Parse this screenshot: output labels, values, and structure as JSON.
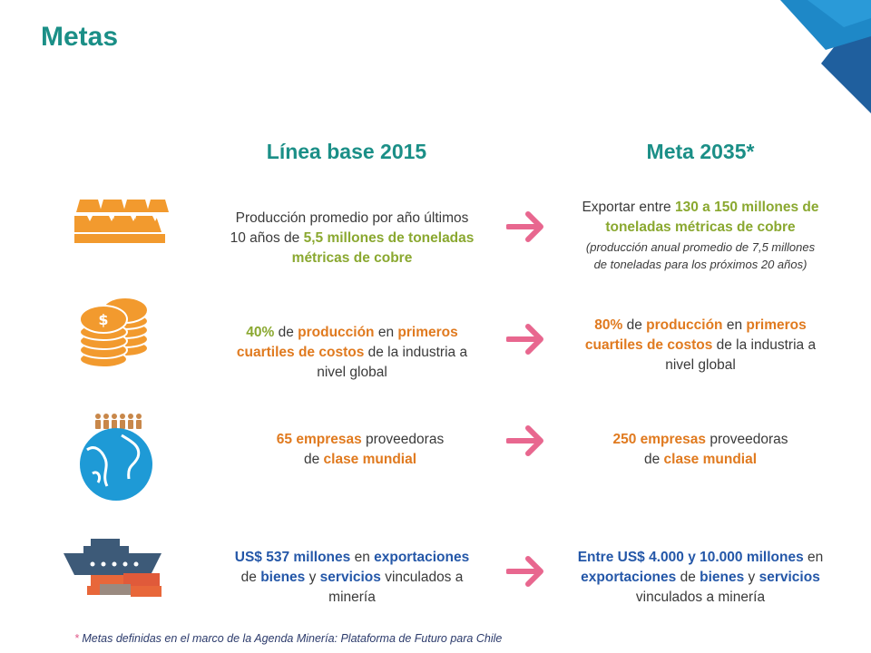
{
  "title": "Metas",
  "columns": {
    "baseline": "Línea base 2015",
    "goal": "Meta 2035*"
  },
  "rows": [
    {
      "icon": "gold-bars-icon",
      "baseline": {
        "t1": "Producción promedio por año últimos",
        "t2": "10 años de ",
        "t3": "5,5 millones de toneladas",
        "t4": "métricas de cobre"
      },
      "goal": {
        "t1": "Exportar entre ",
        "t2": "130 a 150 millones de",
        "t3": "toneladas métricas de cobre",
        "t4": "(producción anual promedio de 7,5 millones",
        "t5": "de toneladas para los próximos 20 años)"
      }
    },
    {
      "icon": "coins-icon",
      "baseline": {
        "pct": "40%",
        "w1": " de ",
        "prod": "producción",
        "w2": " en ",
        "prim": "primeros",
        "cuart": "cuartiles de costos",
        "w3": " de la industria a",
        "w4": "nivel global"
      },
      "goal": {
        "pct": "80%",
        "w1": " de ",
        "prod": "producción",
        "w2": " en ",
        "prim": "primeros",
        "cuart": "cuartiles de costos",
        "w3": " de la industria a",
        "w4": "nivel global"
      }
    },
    {
      "icon": "globe-people-icon",
      "baseline": {
        "num": "65 empresas",
        "w1": " proveedoras",
        "w2": "de ",
        "clase": "clase mundial"
      },
      "goal": {
        "num": "250 empresas",
        "w1": " proveedoras",
        "w2": "de ",
        "clase": "clase mundial"
      }
    },
    {
      "icon": "cargo-ship-icon",
      "baseline": {
        "amt": "US$ 537 millones",
        "w1": " en ",
        "exp": "exportaciones",
        "w2": "de ",
        "bienes": "bienes",
        "w3": " y ",
        "serv": "servicios",
        "w4": " vinculados a",
        "w5": "minería"
      },
      "goal": {
        "amt": "Entre US$ 4.000 y 10.000 millones",
        "w1": " en",
        "exp": "exportaciones",
        "w2": " de ",
        "bienes": "bienes",
        "w3": " y ",
        "serv": "servicios",
        "w4": "vinculados a minería"
      }
    }
  ],
  "footnote": {
    "star": "*",
    "text": " Metas definidas en el marco de la Agenda Minería: Plataforma de Futuro para Chile"
  },
  "colors": {
    "teal": "#1b8f87",
    "green": "#8aa830",
    "orange": "#e07a1f",
    "blue": "#2457a8",
    "arrow": "#e8678f"
  }
}
